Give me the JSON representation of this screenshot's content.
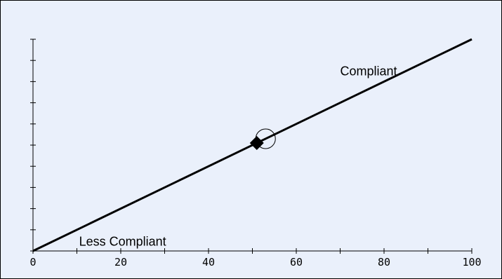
{
  "chart_data": {
    "type": "line",
    "xlim": [
      0,
      100
    ],
    "ylim": [
      0,
      100
    ],
    "x_ticks": [
      0,
      20,
      40,
      60,
      80,
      100
    ],
    "x_tick_labels": [
      "0",
      "20",
      "40",
      "60",
      "80",
      "100"
    ],
    "x_minor_step": 10,
    "y_tick_count": 11,
    "grid": false,
    "series": [
      {
        "x": [
          0,
          100
        ],
        "y": [
          0,
          100
        ],
        "color": "#000000"
      }
    ],
    "markers": [
      {
        "shape": "diamond",
        "x": 51,
        "y": 51,
        "color": "#000000"
      },
      {
        "shape": "circle",
        "x": 53,
        "y": 53,
        "color": "#000000"
      }
    ],
    "annotations": [
      {
        "text": "Compliant",
        "x": 70,
        "y": 83
      },
      {
        "text": "Less Compliant",
        "x": 10.5,
        "y": 2.5
      }
    ],
    "background": "#eaf0fb"
  }
}
